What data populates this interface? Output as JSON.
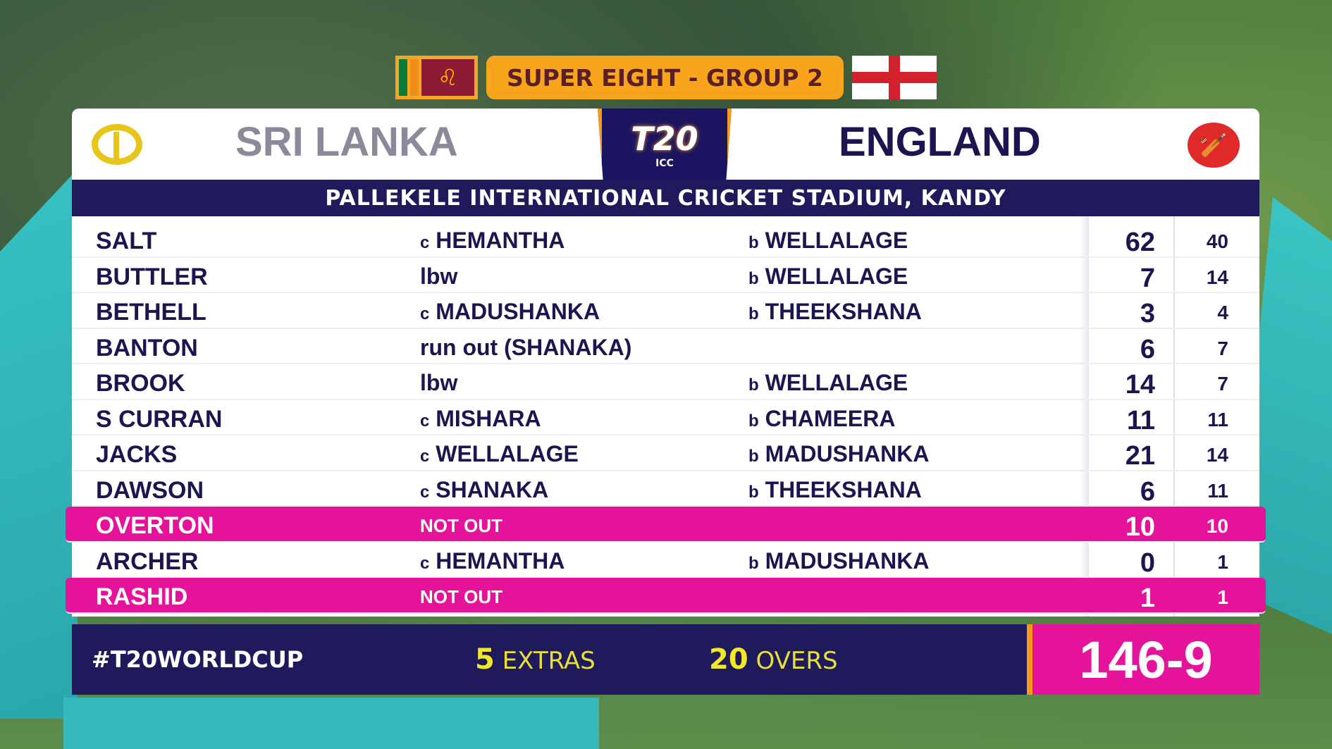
{
  "header": {
    "stage": "SUPER EIGHT - GROUP 2",
    "team_left": "SRI LANKA",
    "team_right": "ENGLAND",
    "logo_text": "T20",
    "logo_sub": "ICC",
    "venue": "PALLEKELE INTERNATIONAL CRICKET STADIUM, KANDY"
  },
  "batting": [
    {
      "name": "SALT",
      "how_prefix": "c",
      "how": "HEMANTHA",
      "bowler": "WELLALAGE",
      "runs": "62",
      "balls": "40"
    },
    {
      "name": "BUTTLER",
      "how_prefix": "",
      "how": "lbw",
      "bowler": "WELLALAGE",
      "runs": "7",
      "balls": "14"
    },
    {
      "name": "BETHELL",
      "how_prefix": "c",
      "how": "MADUSHANKA",
      "bowler": "THEEKSHANA",
      "runs": "3",
      "balls": "4"
    },
    {
      "name": "BANTON",
      "how_prefix": "",
      "how": "run out (SHANAKA)",
      "bowler": "",
      "runs": "6",
      "balls": "7"
    },
    {
      "name": "BROOK",
      "how_prefix": "",
      "how": "lbw",
      "bowler": "WELLALAGE",
      "runs": "14",
      "balls": "7"
    },
    {
      "name": "S CURRAN",
      "how_prefix": "c",
      "how": "MISHARA",
      "bowler": "CHAMEERA",
      "runs": "11",
      "balls": "11"
    },
    {
      "name": "JACKS",
      "how_prefix": "c",
      "how": "WELLALAGE",
      "bowler": "MADUSHANKA",
      "runs": "21",
      "balls": "14"
    },
    {
      "name": "DAWSON",
      "how_prefix": "c",
      "how": "SHANAKA",
      "bowler": "THEEKSHANA",
      "runs": "6",
      "balls": "11"
    },
    {
      "name": "OVERTON",
      "how_prefix": "",
      "how": "NOT OUT",
      "bowler": "",
      "runs": "10",
      "balls": "10",
      "not_out": true
    },
    {
      "name": "ARCHER",
      "how_prefix": "c",
      "how": "HEMANTHA",
      "bowler": "MADUSHANKA",
      "runs": "0",
      "balls": "1"
    },
    {
      "name": "RASHID",
      "how_prefix": "",
      "how": "NOT OUT",
      "bowler": "",
      "runs": "1",
      "balls": "1",
      "not_out": true
    }
  ],
  "footer": {
    "hashtag": "#T20WORLDCUP",
    "extras": "5",
    "extras_label": "EXTRAS",
    "overs": "20",
    "overs_label": "OVERS",
    "total": "146-9"
  },
  "colors": {
    "navy": "#1e1a5c",
    "pink": "#e5139a",
    "orange": "#f8a51d",
    "yellow": "#e7df3a"
  }
}
